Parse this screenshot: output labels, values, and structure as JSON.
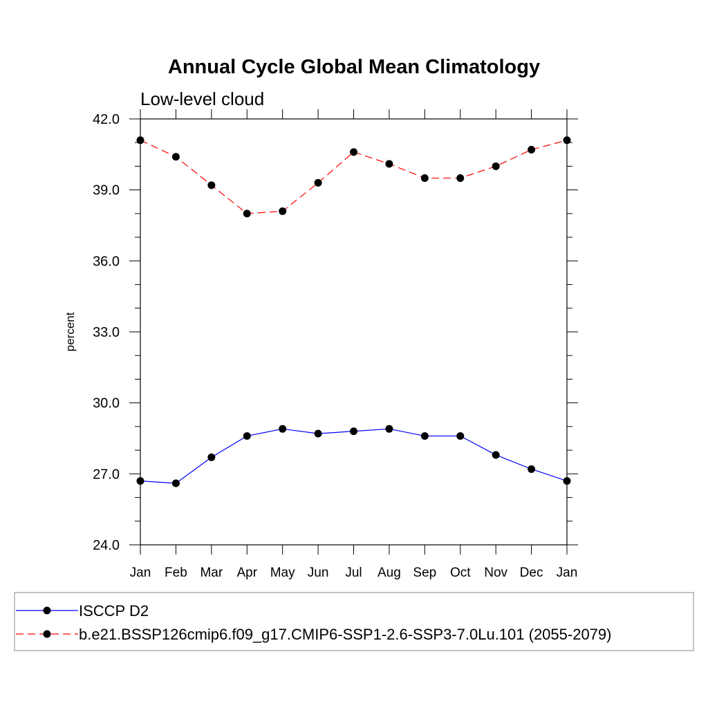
{
  "chart_data": {
    "type": "line",
    "title": "Annual Cycle Global Mean Climatology",
    "subtitle": "Low-level cloud",
    "ylabel": "percent",
    "xlabel": "",
    "categories": [
      "Jan",
      "Feb",
      "Mar",
      "Apr",
      "May",
      "Jun",
      "Jul",
      "Aug",
      "Sep",
      "Oct",
      "Nov",
      "Dec",
      "Jan"
    ],
    "ylim": [
      24.0,
      42.0
    ],
    "yticks": [
      "24.0",
      "27.0",
      "30.0",
      "33.0",
      "36.0",
      "39.0",
      "42.0"
    ],
    "grid": false,
    "legend_position": "bottom",
    "series": [
      {
        "name": "ISCCP D2",
        "color": "#0000ff",
        "line_style": "solid",
        "marker": "filled-circle",
        "values": [
          26.7,
          26.6,
          27.7,
          28.6,
          28.9,
          28.7,
          28.8,
          28.9,
          28.6,
          28.6,
          27.8,
          27.2,
          26.7
        ]
      },
      {
        "name": "b.e21.BSSP126cmip6.f09_g17.CMIP6-SSP1-2.6-SSP3-7.0Lu.101 (2055-2079)",
        "color": "#ff0000",
        "line_style": "dashed",
        "marker": "filled-circle",
        "values": [
          41.1,
          40.4,
          39.2,
          38.0,
          38.1,
          39.3,
          40.6,
          40.1,
          39.5,
          39.5,
          40.0,
          40.7,
          41.1
        ]
      }
    ]
  }
}
